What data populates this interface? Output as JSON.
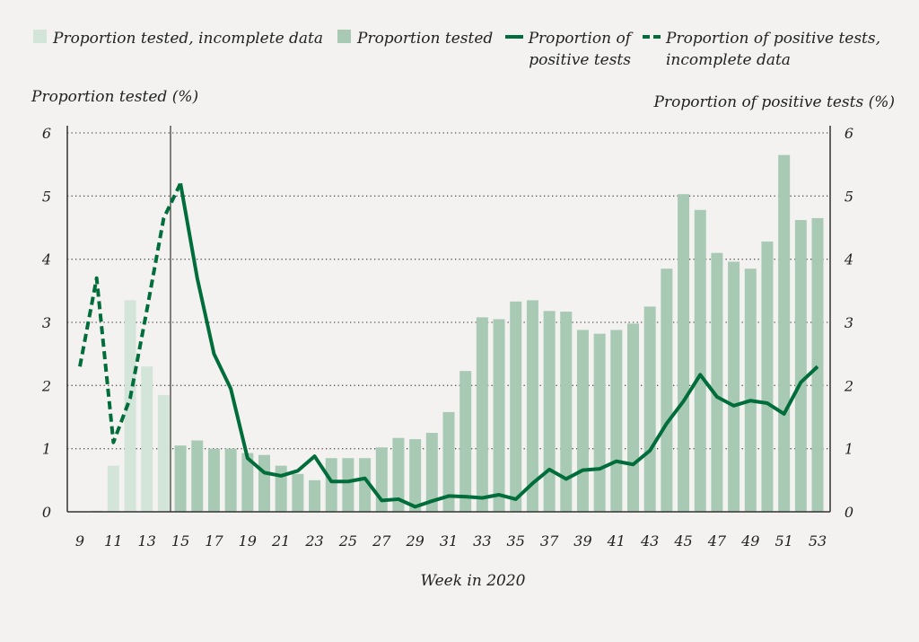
{
  "chart_data": {
    "type": "bar+line",
    "xlabel": "Week in 2020",
    "ylabel_left": "Proportion tested (%)",
    "ylabel_right": "Proportion of positive tests (%)",
    "ylim": [
      0,
      6
    ],
    "yticks": [
      0,
      1,
      2,
      3,
      4,
      5,
      6
    ],
    "xlim": [
      9,
      53
    ],
    "xticks": [
      9,
      11,
      13,
      15,
      17,
      19,
      21,
      23,
      25,
      27,
      29,
      31,
      33,
      35,
      37,
      39,
      41,
      43,
      45,
      47,
      49,
      51,
      53
    ],
    "grid": "horizontal dotted",
    "legend_position": "top",
    "colors": {
      "background": "#f3f2f0",
      "bar_incomplete": "#d3e4d8",
      "bar": "#a8cab5",
      "line": "#006d3a"
    },
    "legend": [
      {
        "label": "Proportion tested, incomplete data",
        "kind": "bar_incomplete"
      },
      {
        "label": "Proportion tested",
        "kind": "bar"
      },
      {
        "label": "Proportion of\npositive tests",
        "kind": "line"
      },
      {
        "label": "Proportion of positive tests,\nincomplete data",
        "kind": "line_dashed"
      }
    ],
    "series": [
      {
        "name": "Proportion tested, incomplete data",
        "type": "bar",
        "x": [
          10,
          11,
          12,
          13,
          14
        ],
        "values": [
          0.02,
          0.73,
          3.35,
          2.3,
          1.85
        ]
      },
      {
        "name": "Proportion tested",
        "type": "bar",
        "x": [
          15,
          16,
          17,
          18,
          19,
          20,
          21,
          22,
          23,
          24,
          25,
          26,
          27,
          28,
          29,
          30,
          31,
          32,
          33,
          34,
          35,
          36,
          37,
          38,
          39,
          40,
          41,
          42,
          43,
          44,
          45,
          46,
          47,
          48,
          49,
          50,
          51,
          52,
          53
        ],
        "values": [
          1.05,
          1.13,
          1.0,
          1.0,
          0.93,
          0.9,
          0.73,
          0.6,
          0.5,
          0.85,
          0.85,
          0.85,
          1.02,
          1.17,
          1.15,
          1.25,
          1.58,
          2.23,
          3.08,
          3.05,
          3.33,
          3.35,
          3.18,
          3.17,
          2.88,
          2.82,
          2.88,
          2.98,
          3.25,
          3.85,
          5.03,
          4.78,
          4.1,
          3.96,
          3.85,
          4.28,
          5.65,
          4.62,
          4.65
        ]
      },
      {
        "name": "Proportion of positive tests, incomplete data",
        "type": "line_dashed",
        "x": [
          9,
          10,
          11,
          12,
          13,
          14,
          15
        ],
        "values": [
          2.3,
          3.7,
          1.1,
          1.8,
          3.2,
          4.65,
          5.2
        ]
      },
      {
        "name": "Proportion of positive tests",
        "type": "line",
        "x": [
          15,
          16,
          17,
          18,
          19,
          20,
          21,
          22,
          23,
          24,
          25,
          26,
          27,
          28,
          29,
          30,
          31,
          32,
          33,
          34,
          35,
          36,
          37,
          38,
          39,
          40,
          41,
          42,
          43,
          44,
          45,
          46,
          47,
          48,
          49,
          50,
          51,
          52,
          53
        ],
        "values": [
          5.2,
          3.7,
          2.5,
          1.95,
          0.85,
          0.62,
          0.57,
          0.65,
          0.88,
          0.48,
          0.48,
          0.53,
          0.18,
          0.2,
          0.08,
          0.17,
          0.25,
          0.24,
          0.22,
          0.27,
          0.2,
          0.45,
          0.67,
          0.52,
          0.66,
          0.68,
          0.8,
          0.75,
          0.97,
          1.4,
          1.75,
          2.17,
          1.82,
          1.68,
          1.76,
          1.72,
          1.55,
          2.05,
          2.3
        ]
      }
    ]
  }
}
